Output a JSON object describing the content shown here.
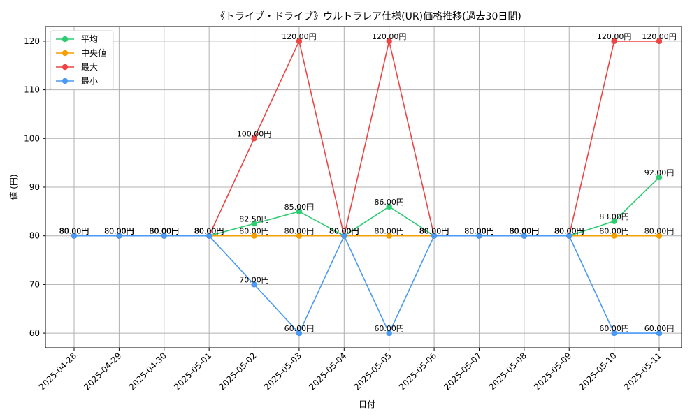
{
  "chart_data": {
    "type": "line",
    "title": "《トライブ・ドライブ》ウルトラレア仕様(UR)価格推移(過去30日間)",
    "xlabel": "日付",
    "ylabel": "値 (円)",
    "ylim": [
      57,
      123
    ],
    "yticks": [
      60,
      70,
      80,
      90,
      100,
      110,
      120
    ],
    "grid": true,
    "legend_position": "top-left",
    "label_suffix": "円",
    "categories": [
      "2025-04-28",
      "2025-04-29",
      "2025-04-30",
      "2025-05-01",
      "2025-05-02",
      "2025-05-03",
      "2025-05-04",
      "2025-05-05",
      "2025-05-06",
      "2025-05-07",
      "2025-05-08",
      "2025-05-09",
      "2025-05-10",
      "2025-05-11"
    ],
    "series": [
      {
        "name": "平均",
        "color": "#2ecc71",
        "values": [
          80,
          80,
          80,
          80,
          82.5,
          85,
          80,
          86,
          80,
          80,
          80,
          80,
          83,
          92
        ]
      },
      {
        "name": "中央値",
        "color": "#f5a000",
        "values": [
          80,
          80,
          80,
          80,
          80,
          80,
          80,
          80,
          80,
          80,
          80,
          80,
          80,
          80
        ]
      },
      {
        "name": "最大",
        "color": "#ef4444",
        "values": [
          80,
          80,
          80,
          80,
          100,
          120,
          80,
          120,
          80,
          80,
          80,
          80,
          120,
          120
        ]
      },
      {
        "name": "最小",
        "color": "#4a9af5",
        "values": [
          80,
          80,
          80,
          80,
          70,
          60,
          80,
          60,
          80,
          80,
          80,
          80,
          60,
          60
        ]
      }
    ]
  }
}
